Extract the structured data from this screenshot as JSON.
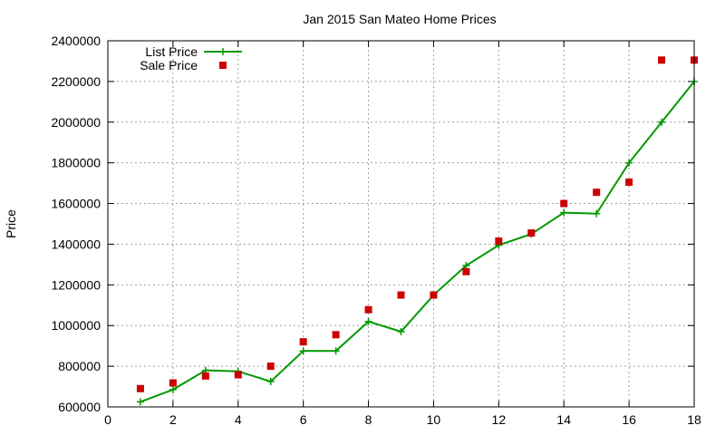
{
  "chart_data": {
    "type": "line",
    "title": "Jan 2015 San Mateo Home Prices",
    "xlabel": "",
    "ylabel": "Price",
    "xlim": [
      0,
      18
    ],
    "ylim": [
      600000,
      2400000
    ],
    "x_ticks": [
      0,
      2,
      4,
      6,
      8,
      10,
      12,
      14,
      16,
      18
    ],
    "y_ticks": [
      600000,
      800000,
      1000000,
      1200000,
      1400000,
      1600000,
      1800000,
      2000000,
      2200000,
      2400000
    ],
    "x_tick_labels": [
      "0",
      "2",
      "4",
      "6",
      "8",
      "10",
      "12",
      "14",
      "16",
      "18"
    ],
    "y_tick_labels": [
      "600000",
      "800000",
      "1000000",
      "1200000",
      "1400000",
      "1600000",
      "1800000",
      "2000000",
      "2200000",
      "2400000"
    ],
    "grid": true,
    "legend_position": "top-left",
    "x": [
      1,
      2,
      3,
      4,
      5,
      6,
      7,
      8,
      9,
      10,
      11,
      12,
      13,
      14,
      15,
      16,
      17,
      18
    ],
    "series": [
      {
        "name": "List Price",
        "style": "linespoints",
        "marker": "plus",
        "color": "#009900",
        "values": [
          625000,
          685000,
          780000,
          775000,
          725000,
          875000,
          875000,
          1020000,
          970000,
          1150000,
          1295000,
          1395000,
          1450000,
          1555000,
          1550000,
          1800000,
          2000000,
          2200000
        ]
      },
      {
        "name": "Sale Price",
        "style": "points",
        "marker": "square",
        "color": "#cc0000",
        "values": [
          690000,
          718000,
          752000,
          758000,
          800000,
          920000,
          955000,
          1078000,
          1150000,
          1150000,
          1265000,
          1415000,
          1455000,
          1600000,
          1655000,
          1705000,
          2305000,
          2305000
        ]
      }
    ]
  }
}
